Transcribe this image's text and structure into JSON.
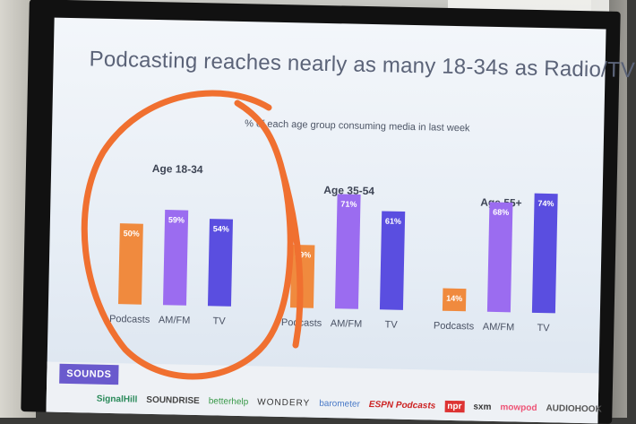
{
  "title": "Podcasting reaches nearly as many 18-34s as Radio/TV",
  "subtitle": "% of each age group consuming media in last week",
  "colors": {
    "podcasts": "#f08a3e",
    "amfm": "#9b6cf0",
    "tv": "#5a4ee0",
    "annotation": "#f07030"
  },
  "chart_data": {
    "type": "bar",
    "groups": [
      {
        "name": "Age 18-34",
        "categories": [
          "Podcasts",
          "AM/FM",
          "TV"
        ],
        "values": [
          50,
          59,
          54
        ]
      },
      {
        "name": "Age 35-54",
        "categories": [
          "Podcasts",
          "AM/FM",
          "TV"
        ],
        "values": [
          39,
          71,
          61
        ]
      },
      {
        "name": "Age 55+",
        "categories": [
          "Podcasts",
          "AM/FM",
          "TV"
        ],
        "values": [
          14,
          68,
          74
        ]
      }
    ],
    "ylim": [
      0,
      100
    ],
    "grid": false,
    "legend": "none"
  },
  "footer": {
    "badge": "SOUNDS",
    "logos": [
      "SignalHill",
      "SOUNDRISE",
      "betterhelp",
      "WONDERY",
      "barometer",
      "ESPN Podcasts",
      "npr",
      "sxm",
      "mowpod",
      "AUDIOHOOK"
    ]
  }
}
